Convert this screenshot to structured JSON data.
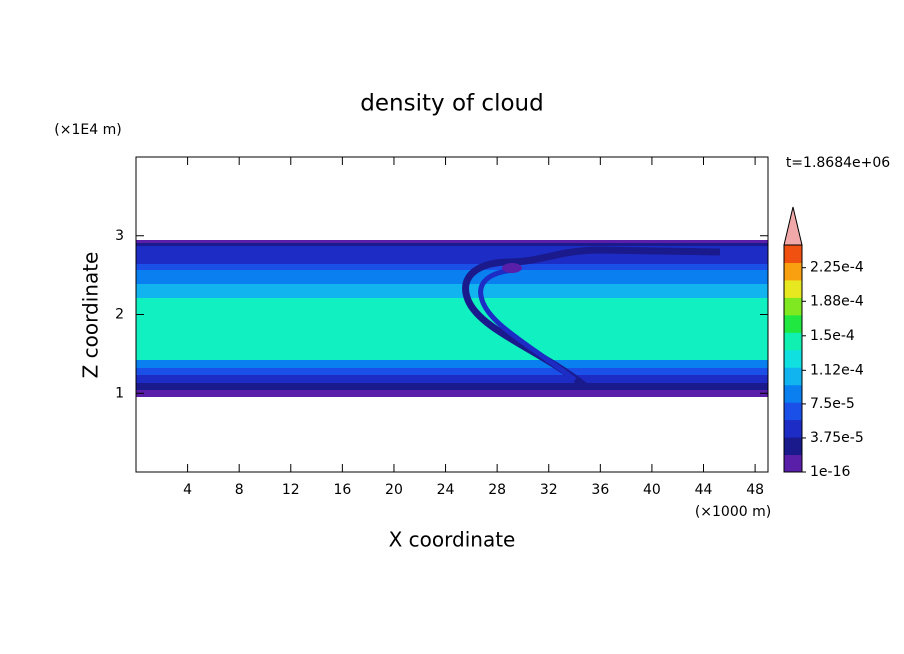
{
  "chart_data": {
    "type": "contour",
    "title": "density of cloud",
    "x_label": "X coordinate",
    "y_label": "Z coordinate",
    "x_unit": "(×1000 m)",
    "y_unit": "(×1E4 m)",
    "time_label": "t=1.8684e+06",
    "xlim": [
      0,
      49
    ],
    "xticks": [
      4,
      8,
      12,
      16,
      20,
      24,
      28,
      32,
      36,
      40,
      44,
      48
    ],
    "ylim": [
      0,
      4
    ],
    "yticks": [
      1,
      2,
      3
    ],
    "colorbar": {
      "lim": [
        0,
        0.00025
      ],
      "ticks": [
        {
          "value": 1e-16,
          "label": "1e-16"
        },
        {
          "value": 3.75e-05,
          "label": "3.75e-5"
        },
        {
          "value": 7.5e-05,
          "label": "7.5e-5"
        },
        {
          "value": 0.000112,
          "label": "1.12e-4"
        },
        {
          "value": 0.00015,
          "label": "1.5e-4"
        },
        {
          "value": 0.000188,
          "label": "1.88e-4"
        },
        {
          "value": 0.000225,
          "label": "2.25e-4"
        }
      ],
      "colors": [
        "#5a1fa8",
        "#1a1a8c",
        "#1c2cc4",
        "#1a50e8",
        "#0a80f0",
        "#12b4f0",
        "#10e0e0",
        "#10f0b0",
        "#20e840",
        "#80e820",
        "#e8e820",
        "#f8a010",
        "#f05010"
      ],
      "extend_color": "#f0a8a8"
    }
  }
}
